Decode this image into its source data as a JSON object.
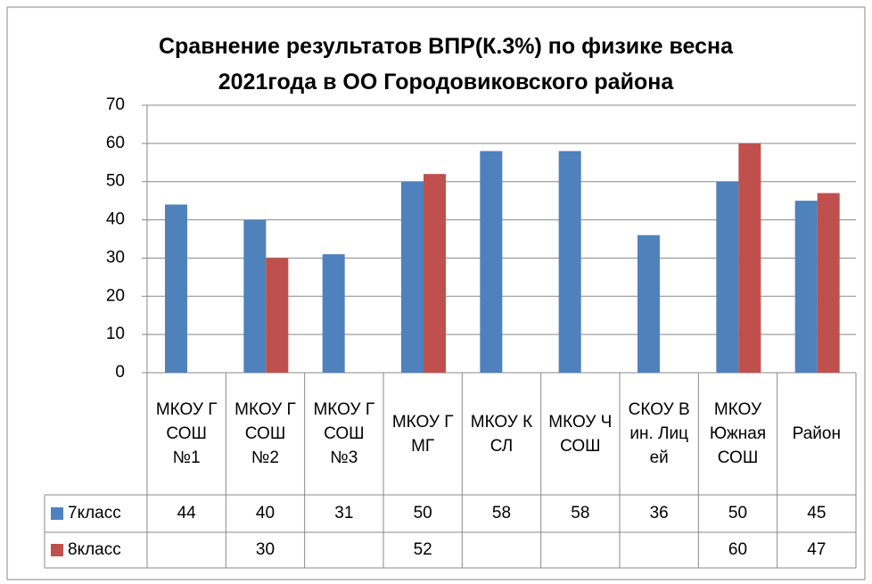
{
  "chart_data": {
    "type": "bar",
    "title": "Сравнение результатов ВПР(К.3%) по физике весна 2021года в ОО Городовиковского района",
    "categories": [
      "МКОУ ГСОШ №1",
      "МКОУ ГСОШ №2",
      "МКОУ ГСОШ №3",
      "МКОУ ГМГ",
      "МКОУ КСЛ",
      "МКОУ ЧСОШ",
      "СКОУ Вин. Лицей",
      "МКОУ Южная СОШ",
      "Район"
    ],
    "series": [
      {
        "name": "7класс",
        "color": "#4f81bd",
        "values": [
          44,
          40,
          31,
          50,
          58,
          58,
          36,
          50,
          45
        ]
      },
      {
        "name": "8класс",
        "color": "#c0504d",
        "values": [
          null,
          30,
          null,
          52,
          null,
          null,
          null,
          60,
          47
        ]
      }
    ],
    "ylim": [
      0,
      70
    ],
    "yticks": [
      0,
      10,
      20,
      30,
      40,
      50,
      60,
      70
    ],
    "grid": true
  }
}
